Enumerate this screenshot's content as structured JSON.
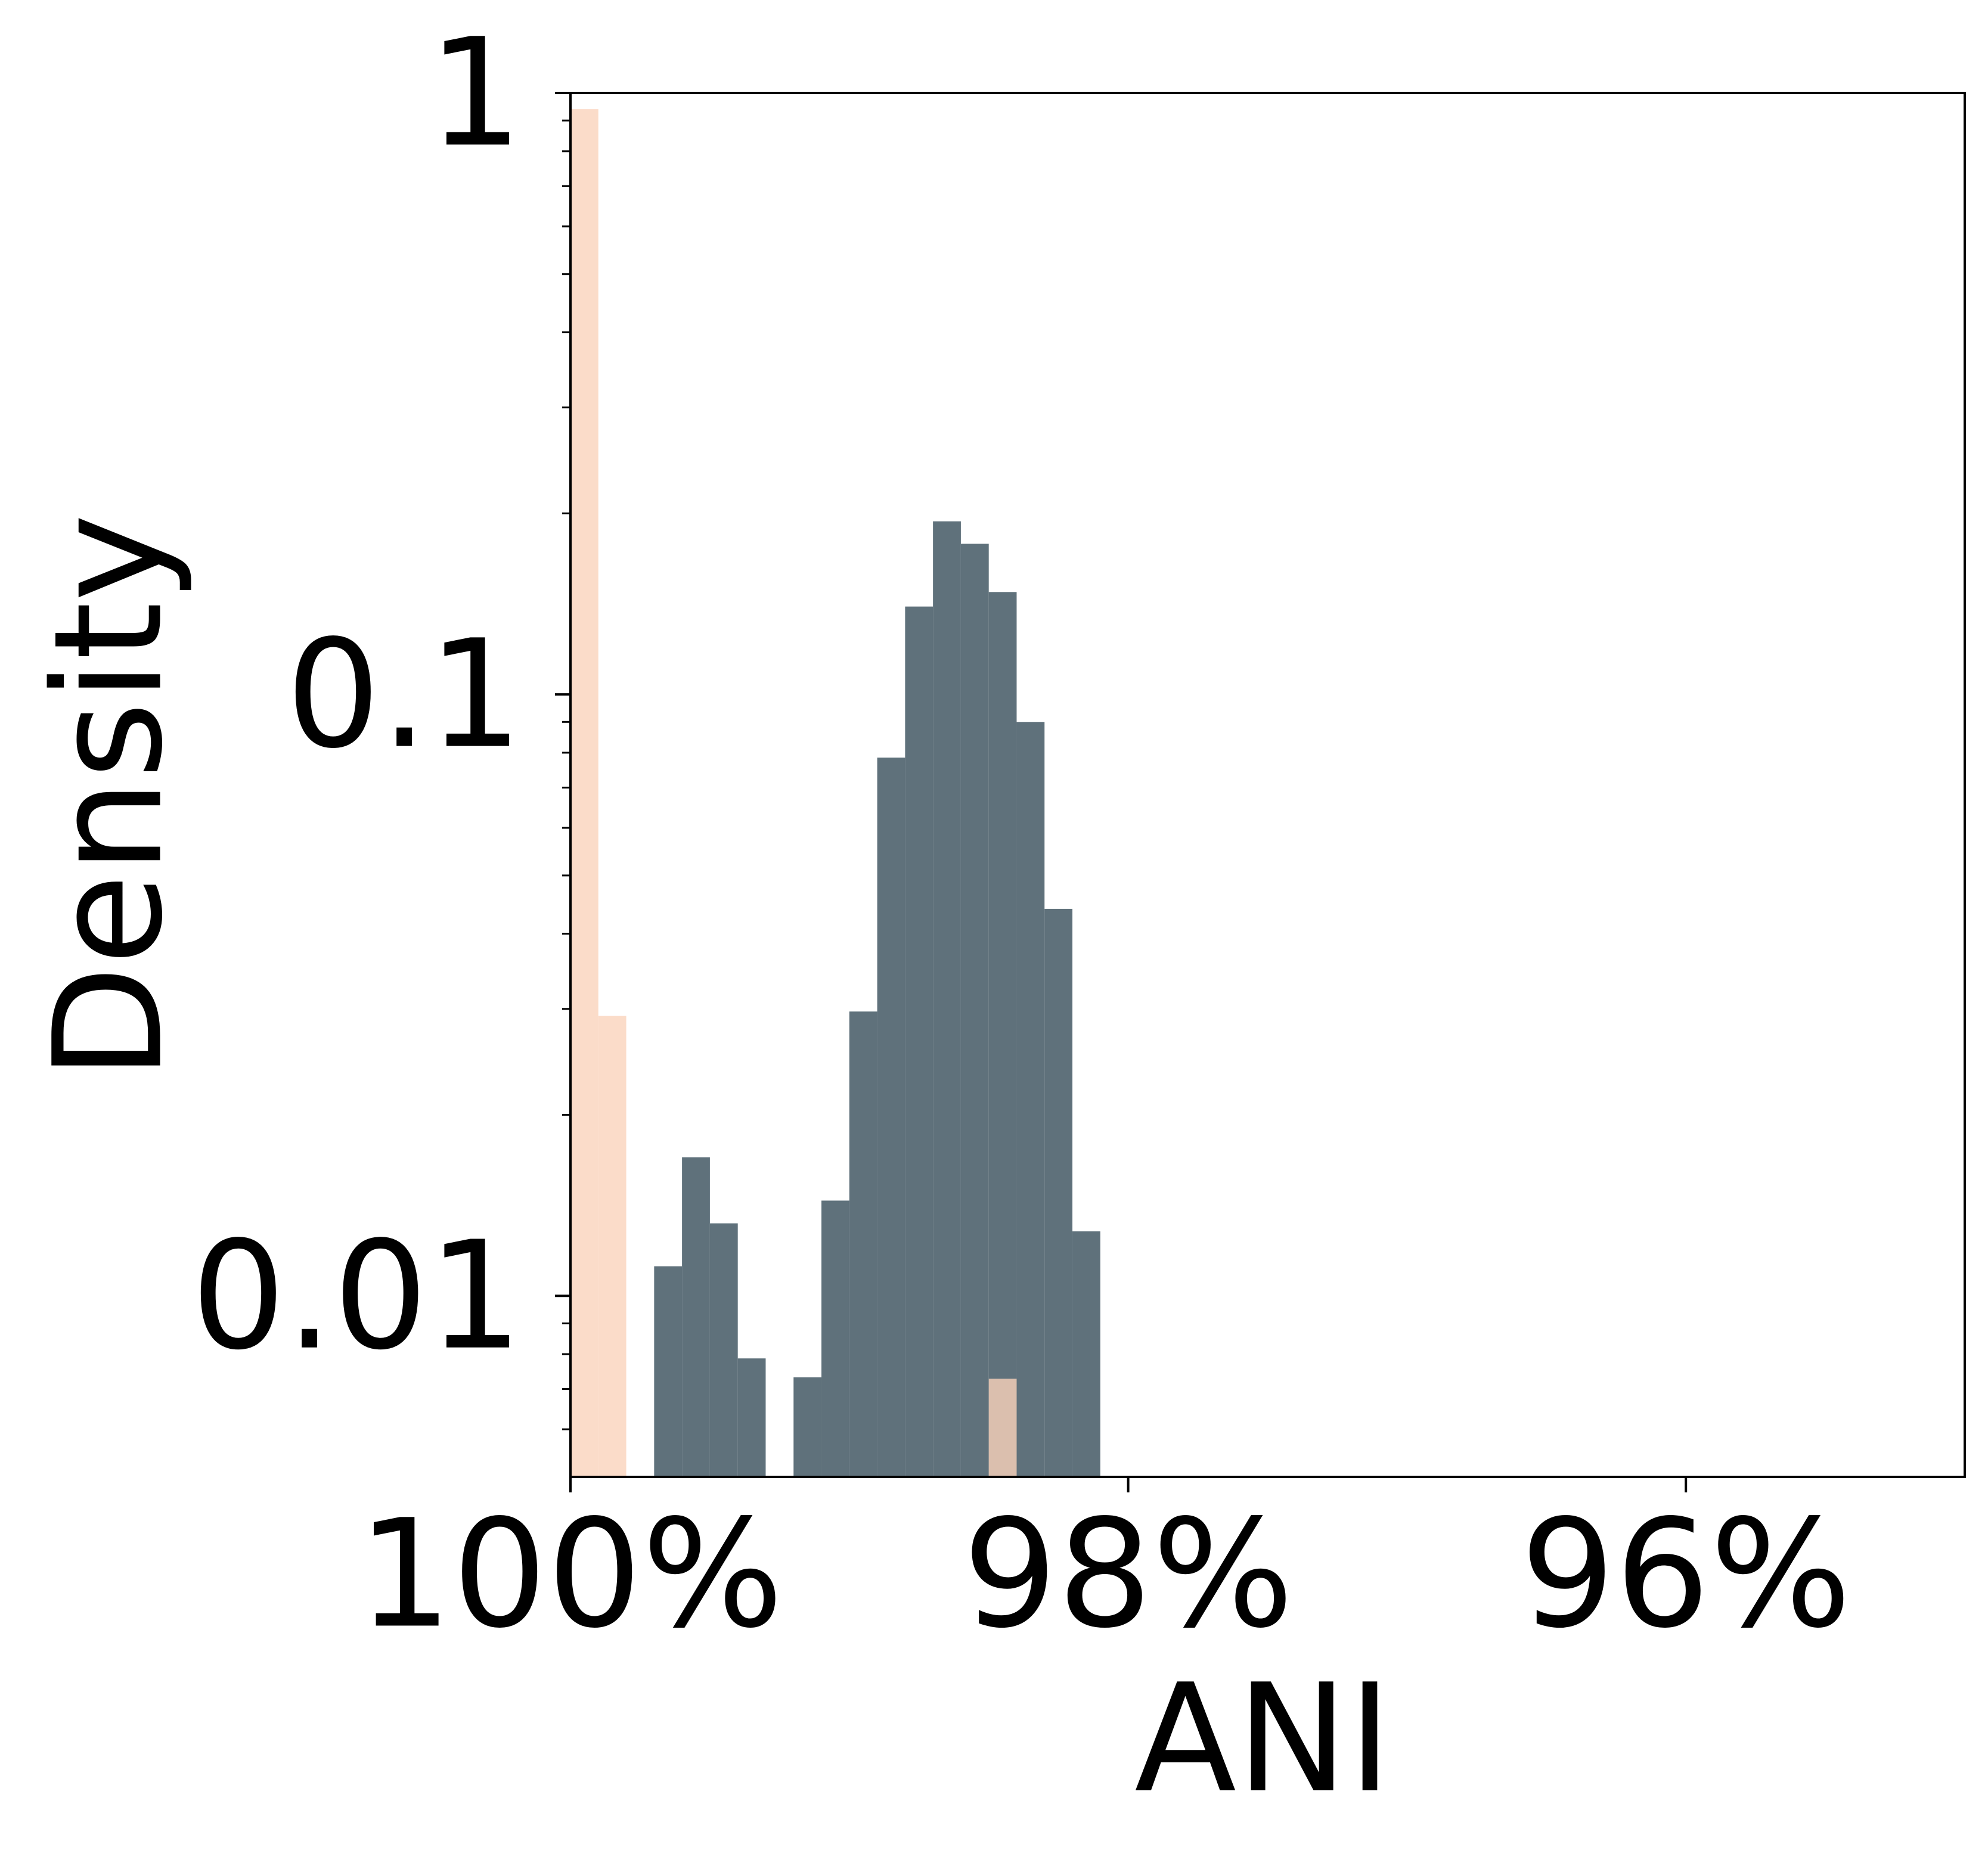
{
  "chart_data": {
    "type": "histogram",
    "xlabel": "ANI",
    "ylabel": "Density",
    "bins": [
      100,
      99.9,
      99.8,
      99.7,
      99.6,
      99.5,
      99.4,
      99.3,
      99.2,
      99.1,
      99.0,
      98.9,
      98.8,
      98.7,
      98.6,
      98.5,
      98.4,
      98.3,
      98.2,
      98.1
    ],
    "series": [
      {
        "color": "#5f717b",
        "opacity": 1,
        "values": [
          0,
          0,
          0,
          0.0112,
          0.017,
          0.0132,
          0.00787,
          0,
          0.00732,
          0.0144,
          0.0297,
          0.0785,
          0.14,
          0.194,
          0.178,
          0.148,
          0.09,
          0.044,
          0.0128
        ]
      },
      {
        "color": "#fad3bb",
        "opacity": 0.8,
        "values": [
          0.94,
          0.0292,
          0,
          0,
          0,
          0,
          0,
          0,
          0,
          0,
          0,
          0,
          0,
          0,
          0,
          0.00728,
          0,
          0,
          0
        ]
      }
    ],
    "xlim": [
      100,
      95
    ],
    "xticks": [
      {
        "value": 100,
        "label": "100%"
      },
      {
        "value": 98,
        "label": "98%"
      },
      {
        "value": 96,
        "label": "96%"
      }
    ],
    "ylim": [
      0.005,
      1
    ],
    "ylog": true,
    "yticks": [
      1,
      0.1,
      0.01
    ],
    "yminorticks": [
      0.006,
      0.007,
      0.008,
      0.009,
      0.02,
      0.03,
      0.04,
      0.05,
      0.06,
      0.07,
      0.08,
      0.09,
      0.2,
      0.3,
      0.4,
      0.5,
      0.6,
      0.7,
      0.8,
      0.9
    ]
  }
}
